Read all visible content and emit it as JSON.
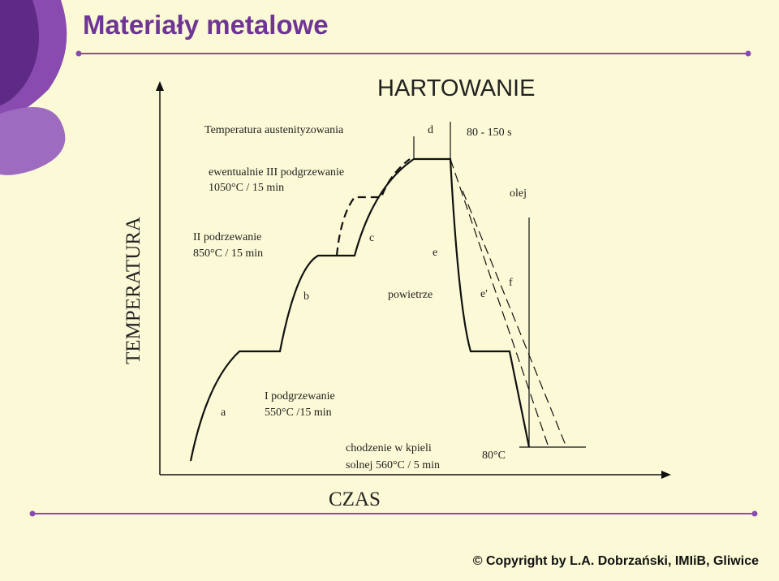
{
  "header": {
    "title": "Materiały metalowe"
  },
  "diagram": {
    "heading": "HARTOWANIE",
    "austenitizing": "Temperatura austenityzowania",
    "d": "d",
    "d_time": "80 - 150 s",
    "third_heating": [
      "ewentualnie III podgrzewanie",
      "1050°C / 15 min"
    ],
    "oil": "olej",
    "y_axis": "TEMPERATURA",
    "second_heating": [
      "II podrzewanie",
      "850°C / 15 min"
    ],
    "c": "c",
    "e": "e",
    "b": "b",
    "air": "powietrze",
    "e_prime": "e'",
    "f": "f",
    "a": "a",
    "first_heating": [
      "I podgrzewanie",
      "550°C /15 min"
    ],
    "salt_bath": [
      "chodzenie w kpieli",
      "solnej 560°C / 5 min"
    ],
    "end_temp": "80°C",
    "x_axis": "CZAS"
  },
  "footer": {
    "copyright": "© Copyright by L.A. Dobrzański, IMIiB, Gliwice"
  }
}
